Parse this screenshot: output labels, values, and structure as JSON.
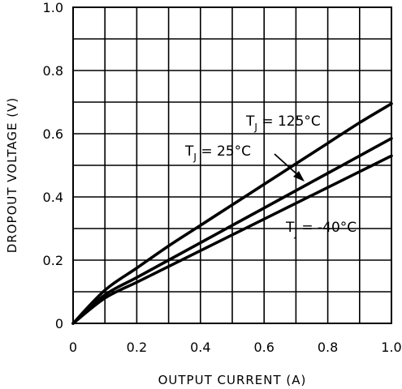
{
  "chart_data": {
    "type": "line",
    "title": "",
    "xlabel": "OUTPUT CURRENT (A)",
    "ylabel": "DROPOUT VOLTAGE (V)",
    "xlim": [
      0,
      1.0
    ],
    "ylim": [
      0,
      1.0
    ],
    "grid": true,
    "x_ticks": [
      "0",
      "0.2",
      "0.4",
      "0.6",
      "0.8",
      "1.0"
    ],
    "y_ticks": [
      "0",
      "0.2",
      "0.4",
      "0.6",
      "0.8",
      "1.0"
    ],
    "series": [
      {
        "name_main": "T",
        "name_sub": "J",
        "name_rest": " = 125°C",
        "x": [
          0,
          0.1,
          0.2,
          0.3,
          0.4,
          0.5,
          0.6,
          0.7,
          0.8,
          0.9,
          1.0
        ],
        "values": [
          0,
          0.105,
          0.175,
          0.245,
          0.31,
          0.375,
          0.44,
          0.505,
          0.57,
          0.635,
          0.695
        ]
      },
      {
        "name_main": "T",
        "name_sub": "J",
        "name_rest": " = 25°C",
        "x": [
          0,
          0.1,
          0.2,
          0.3,
          0.4,
          0.5,
          0.6,
          0.7,
          0.8,
          0.9,
          1.0
        ],
        "values": [
          0,
          0.09,
          0.145,
          0.2,
          0.255,
          0.31,
          0.365,
          0.42,
          0.475,
          0.53,
          0.585
        ]
      },
      {
        "name_main": "T",
        "name_sub": "J",
        "name_rest": " = -40°C",
        "x": [
          0,
          0.1,
          0.2,
          0.3,
          0.4,
          0.5,
          0.6,
          0.7,
          0.8,
          0.9,
          1.0
        ],
        "values": [
          0,
          0.08,
          0.13,
          0.18,
          0.23,
          0.28,
          0.33,
          0.38,
          0.43,
          0.48,
          0.53
        ]
      }
    ]
  }
}
